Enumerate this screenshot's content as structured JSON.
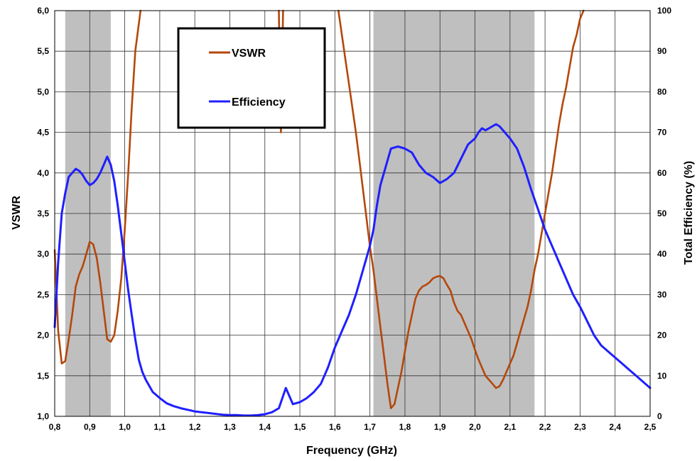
{
  "chart_data": {
    "type": "line",
    "xlabel": "Frequency (GHz)",
    "ylabel_left": "VSWR",
    "ylabel_right": "Total Efficiency (%)",
    "xlim": [
      0.8,
      2.5
    ],
    "ylim_left": [
      1.0,
      6.0
    ],
    "ylim_right": [
      0,
      100
    ],
    "grid": true,
    "legend_position": "top-center",
    "x_ticks": [
      "0,8",
      "0,9",
      "1,0",
      "1,1",
      "1,2",
      "1,3",
      "1,4",
      "1,5",
      "1,6",
      "1,7",
      "1,8",
      "1,9",
      "2,0",
      "2,1",
      "2,2",
      "2,3",
      "2,4",
      "2,5"
    ],
    "y_left_ticks": [
      "1,0",
      "1,5",
      "2,0",
      "2,5",
      "3,0",
      "3,5",
      "4,0",
      "4,5",
      "5,0",
      "5,5",
      "6,0"
    ],
    "y_right_ticks": [
      "0",
      "10",
      "20",
      "30",
      "40",
      "50",
      "60",
      "70",
      "80",
      "90",
      "100"
    ],
    "shaded_bands": [
      {
        "x_start": 0.83,
        "x_end": 0.96
      },
      {
        "x_start": 1.71,
        "x_end": 2.17
      }
    ],
    "series": [
      {
        "name": "VSWR",
        "axis": "left",
        "color": "#b5470b",
        "x": [
          0.8,
          0.81,
          0.82,
          0.83,
          0.84,
          0.85,
          0.86,
          0.87,
          0.88,
          0.89,
          0.9,
          0.91,
          0.92,
          0.93,
          0.94,
          0.95,
          0.96,
          0.97,
          0.98,
          0.99,
          1.0,
          1.01,
          1.02,
          1.03,
          1.045
        ],
        "values": [
          3.05,
          2.05,
          1.65,
          1.68,
          1.95,
          2.25,
          2.6,
          2.75,
          2.85,
          3.0,
          3.15,
          3.12,
          2.95,
          2.65,
          2.3,
          1.95,
          1.92,
          2.0,
          2.3,
          2.7,
          3.3,
          4.0,
          4.8,
          5.5,
          6.0
        ]
      },
      {
        "name": "VSWR",
        "axis": "left",
        "color": "#b5470b",
        "x": [
          1.44,
          1.443,
          1.446,
          1.449,
          1.452
        ],
        "values": [
          6.0,
          5.0,
          4.5,
          5.2,
          6.0
        ]
      },
      {
        "name": "VSWR",
        "axis": "left",
        "color": "#b5470b",
        "x": [
          1.61,
          1.62,
          1.63,
          1.64,
          1.65,
          1.66,
          1.67,
          1.68,
          1.69,
          1.7,
          1.71,
          1.72,
          1.73,
          1.74,
          1.75,
          1.76,
          1.77,
          1.78,
          1.79,
          1.8,
          1.81,
          1.82,
          1.83,
          1.84,
          1.85,
          1.86,
          1.87,
          1.88,
          1.89,
          1.9,
          1.91,
          1.92,
          1.93,
          1.94,
          1.95,
          1.96,
          1.97,
          1.98,
          1.99,
          2.0,
          2.01,
          2.02,
          2.03,
          2.04,
          2.05,
          2.06,
          2.07,
          2.08,
          2.09,
          2.1,
          2.11,
          2.12,
          2.13,
          2.14,
          2.15,
          2.16,
          2.17,
          2.18,
          2.19,
          2.2,
          2.21,
          2.22,
          2.23,
          2.24,
          2.25,
          2.26,
          2.27,
          2.28,
          2.29,
          2.3,
          2.31
        ],
        "values": [
          6.0,
          5.7,
          5.4,
          5.1,
          4.8,
          4.5,
          4.15,
          3.8,
          3.45,
          3.1,
          2.8,
          2.45,
          2.1,
          1.75,
          1.4,
          1.1,
          1.15,
          1.35,
          1.55,
          1.8,
          2.05,
          2.25,
          2.45,
          2.55,
          2.6,
          2.62,
          2.65,
          2.7,
          2.72,
          2.73,
          2.7,
          2.62,
          2.55,
          2.4,
          2.3,
          2.25,
          2.15,
          2.05,
          1.95,
          1.82,
          1.7,
          1.6,
          1.5,
          1.45,
          1.4,
          1.35,
          1.37,
          1.45,
          1.55,
          1.65,
          1.75,
          1.9,
          2.05,
          2.2,
          2.35,
          2.55,
          2.8,
          3.0,
          3.25,
          3.5,
          3.75,
          4.0,
          4.3,
          4.6,
          4.85,
          5.05,
          5.3,
          5.55,
          5.7,
          5.9,
          6.0
        ]
      },
      {
        "name": "Efficiency",
        "axis": "right",
        "color": "#1f1fff",
        "x": [
          0.8,
          0.81,
          0.82,
          0.83,
          0.84,
          0.85,
          0.86,
          0.87,
          0.88,
          0.89,
          0.9,
          0.91,
          0.92,
          0.93,
          0.94,
          0.95,
          0.96,
          0.97,
          0.98,
          0.99,
          1.0,
          1.01,
          1.02,
          1.03,
          1.04,
          1.05,
          1.06,
          1.07,
          1.08,
          1.1,
          1.12,
          1.14,
          1.16,
          1.18,
          1.2,
          1.22,
          1.24,
          1.26,
          1.28,
          1.3,
          1.32,
          1.34,
          1.36,
          1.38,
          1.4,
          1.42,
          1.44,
          1.46,
          1.48,
          1.5,
          1.52,
          1.54,
          1.56,
          1.58,
          1.6,
          1.62,
          1.64,
          1.66,
          1.68,
          1.7,
          1.71,
          1.72,
          1.73,
          1.74,
          1.75,
          1.76,
          1.78,
          1.8,
          1.82,
          1.84,
          1.86,
          1.88,
          1.9,
          1.92,
          1.94,
          1.96,
          1.98,
          2.0,
          2.01,
          2.02,
          2.03,
          2.04,
          2.05,
          2.06,
          2.07,
          2.08,
          2.1,
          2.12,
          2.14,
          2.16,
          2.18,
          2.2,
          2.22,
          2.24,
          2.26,
          2.28,
          2.3,
          2.32,
          2.34,
          2.36,
          2.38,
          2.4,
          2.42,
          2.44,
          2.46,
          2.48,
          2.5
        ],
        "values": [
          22,
          38,
          50,
          55,
          59,
          60,
          61,
          60.5,
          59.5,
          58,
          57,
          57.5,
          58.5,
          60,
          62,
          64,
          62,
          58,
          52,
          45,
          38,
          31,
          25,
          19,
          14,
          11,
          9,
          7.5,
          6,
          4.5,
          3.2,
          2.5,
          2.0,
          1.6,
          1.2,
          1.0,
          0.8,
          0.6,
          0.4,
          0.3,
          0.3,
          0.2,
          0.2,
          0.3,
          0.5,
          1.0,
          2.0,
          7.0,
          3.0,
          3.5,
          4.5,
          6.0,
          8.0,
          12,
          17,
          21,
          25,
          30,
          36,
          42,
          46,
          52,
          57,
          60,
          63,
          66,
          66.5,
          66,
          65,
          62,
          60,
          59,
          57.5,
          58.5,
          60,
          63.5,
          67,
          68.5,
          70,
          71,
          70.5,
          71,
          71.5,
          72,
          71.5,
          70.5,
          68.5,
          66,
          61.5,
          56,
          51,
          46,
          42,
          38,
          34,
          30,
          27,
          23.5,
          20,
          17.5,
          16,
          14.5,
          13,
          11.5,
          10,
          8.5,
          7
        ]
      }
    ]
  }
}
